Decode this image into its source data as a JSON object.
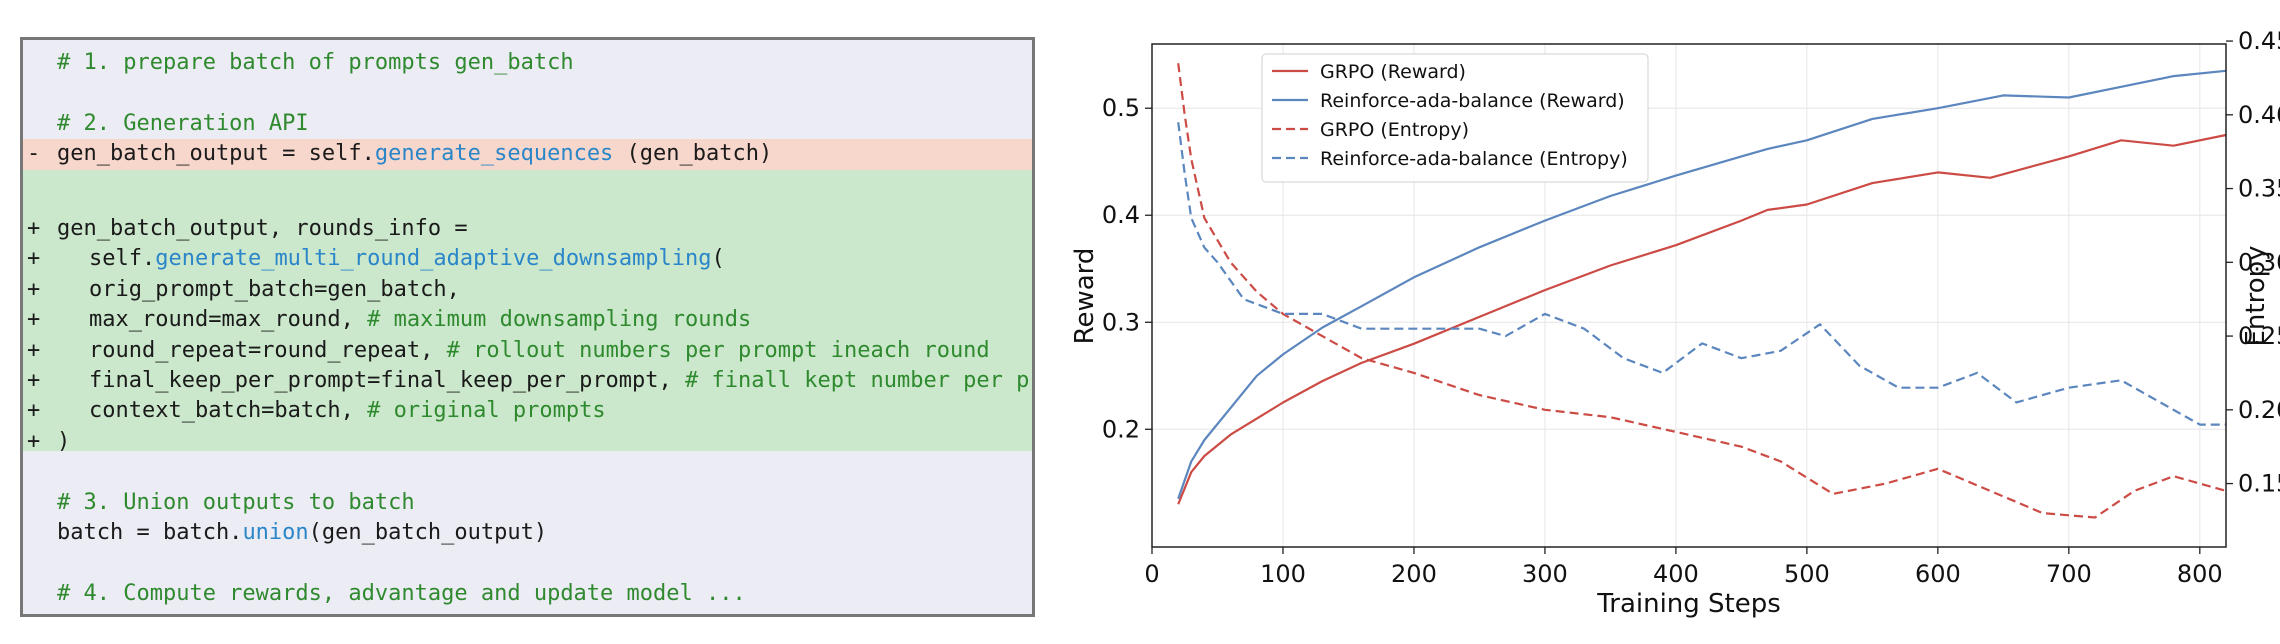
{
  "code": {
    "lines": [
      {
        "marker": "",
        "indent": 1,
        "hl": "",
        "segments": [
          {
            "t": "# 1. prepare batch of prompts gen_batch",
            "c": "comment"
          }
        ]
      },
      {
        "marker": "",
        "indent": 1,
        "hl": "",
        "segments": []
      },
      {
        "marker": "",
        "indent": 1,
        "hl": "",
        "segments": [
          {
            "t": "# 2. Generation API",
            "c": "comment"
          }
        ]
      },
      {
        "marker": "-",
        "indent": 1,
        "hl": "removed",
        "segments": [
          {
            "t": "gen_batch_output = self.",
            "c": ""
          },
          {
            "t": "generate_sequences",
            "c": "func"
          },
          {
            "t": " (gen_batch)",
            "c": ""
          }
        ]
      },
      {
        "marker": "",
        "indent": 1,
        "hl": "added",
        "segments": []
      },
      {
        "marker": "+",
        "indent": 1,
        "hl": "added",
        "segments": [
          {
            "t": "gen_batch_output, rounds_info =",
            "c": ""
          }
        ]
      },
      {
        "marker": "+",
        "indent": 2,
        "hl": "added",
        "segments": [
          {
            "t": "self.",
            "c": ""
          },
          {
            "t": "generate_multi_round_adaptive_downsampling",
            "c": "func"
          },
          {
            "t": "(",
            "c": ""
          }
        ]
      },
      {
        "marker": "+",
        "indent": 2,
        "hl": "added",
        "segments": [
          {
            "t": "orig_prompt_batch=gen_batch,",
            "c": ""
          }
        ]
      },
      {
        "marker": "+",
        "indent": 2,
        "hl": "added",
        "segments": [
          {
            "t": "max_round=max_round, ",
            "c": ""
          },
          {
            "t": "# maximum downsampling rounds",
            "c": "comment"
          }
        ]
      },
      {
        "marker": "+",
        "indent": 2,
        "hl": "added",
        "segments": [
          {
            "t": "round_repeat=round_repeat, ",
            "c": ""
          },
          {
            "t": "# rollout numbers per prompt ineach round",
            "c": "comment"
          }
        ]
      },
      {
        "marker": "+",
        "indent": 2,
        "hl": "added",
        "segments": [
          {
            "t": "final_keep_per_prompt=final_keep_per_prompt, ",
            "c": ""
          },
          {
            "t": "# finall kept number per prompt",
            "c": "comment"
          }
        ]
      },
      {
        "marker": "+",
        "indent": 2,
        "hl": "added",
        "segments": [
          {
            "t": "context_batch=batch, ",
            "c": ""
          },
          {
            "t": "# original prompts",
            "c": "comment"
          }
        ]
      },
      {
        "marker": "+",
        "indent": 1,
        "hl": "added",
        "segments": [
          {
            "t": ")",
            "c": ""
          }
        ]
      },
      {
        "marker": "",
        "indent": 1,
        "hl": "",
        "segments": []
      },
      {
        "marker": "",
        "indent": 1,
        "hl": "",
        "segments": [
          {
            "t": "# 3. Union outputs to batch",
            "c": "comment"
          }
        ]
      },
      {
        "marker": "",
        "indent": 1,
        "hl": "",
        "segments": [
          {
            "t": "batch = batch.",
            "c": ""
          },
          {
            "t": "union",
            "c": "func"
          },
          {
            "t": "(gen_batch_output)",
            "c": ""
          }
        ]
      },
      {
        "marker": "",
        "indent": 1,
        "hl": "",
        "segments": []
      },
      {
        "marker": "",
        "indent": 1,
        "hl": "",
        "segments": [
          {
            "t": "# 4. Compute rewards, advantage and update model ...",
            "c": "comment"
          }
        ]
      }
    ],
    "colors": {
      "comment": "#2f8a2f",
      "func": "#2a86c8",
      "removed_bg": "#f7d6cb",
      "added_bg": "#cce8cc"
    }
  },
  "chart_data": {
    "type": "line",
    "xlabel": "Training Steps",
    "ylabel_left": "Reward",
    "ylabel_right": "Entropy",
    "xlim": [
      0,
      820
    ],
    "ylim_left": [
      0.09,
      0.56
    ],
    "ylim_right": [
      0.107,
      0.448
    ],
    "xticks": [
      0,
      100,
      200,
      300,
      400,
      500,
      600,
      700,
      800
    ],
    "yticks_left": [
      0.2,
      0.3,
      0.4,
      0.5
    ],
    "yticks_right": [
      0.15,
      0.2,
      0.25,
      0.3,
      0.35,
      0.4,
      0.45
    ],
    "grid": true,
    "legend_position": "top-left",
    "series": [
      {
        "name": "GRPO (Reward)",
        "axis": "left",
        "style": "solid",
        "color": "#cc4b45",
        "x": [
          20,
          30,
          40,
          60,
          80,
          100,
          130,
          160,
          200,
          250,
          300,
          350,
          400,
          450,
          470,
          500,
          550,
          600,
          640,
          700,
          740,
          780,
          820
        ],
        "y": [
          0.13,
          0.16,
          0.175,
          0.195,
          0.21,
          0.225,
          0.245,
          0.262,
          0.28,
          0.305,
          0.33,
          0.353,
          0.372,
          0.395,
          0.405,
          0.41,
          0.43,
          0.44,
          0.435,
          0.455,
          0.47,
          0.465,
          0.475
        ]
      },
      {
        "name": "Reinforce-ada-balance (Reward)",
        "axis": "left",
        "style": "solid",
        "color": "#5b86be",
        "x": [
          20,
          30,
          40,
          60,
          80,
          100,
          130,
          160,
          200,
          250,
          300,
          350,
          400,
          450,
          470,
          500,
          550,
          600,
          650,
          700,
          740,
          780,
          820
        ],
        "y": [
          0.135,
          0.17,
          0.19,
          0.22,
          0.25,
          0.27,
          0.295,
          0.315,
          0.342,
          0.37,
          0.395,
          0.418,
          0.437,
          0.455,
          0.462,
          0.47,
          0.49,
          0.5,
          0.512,
          0.51,
          0.52,
          0.53,
          0.535
        ]
      },
      {
        "name": "GRPO (Entropy)",
        "axis": "right",
        "style": "dashed",
        "color": "#cc4b45",
        "x": [
          20,
          25,
          30,
          40,
          50,
          60,
          80,
          100,
          130,
          160,
          200,
          250,
          300,
          350,
          400,
          450,
          480,
          520,
          560,
          600,
          640,
          680,
          720,
          750,
          780,
          820
        ],
        "y": [
          0.435,
          0.4,
          0.37,
          0.33,
          0.315,
          0.3,
          0.28,
          0.265,
          0.25,
          0.235,
          0.225,
          0.21,
          0.2,
          0.195,
          0.185,
          0.175,
          0.165,
          0.143,
          0.15,
          0.16,
          0.145,
          0.13,
          0.127,
          0.145,
          0.155,
          0.145
        ]
      },
      {
        "name": "Reinforce-ada-balance (Entropy)",
        "axis": "right",
        "style": "dashed",
        "color": "#5b86be",
        "x": [
          20,
          25,
          30,
          40,
          50,
          70,
          100,
          130,
          160,
          200,
          250,
          270,
          300,
          330,
          360,
          390,
          420,
          450,
          480,
          510,
          540,
          570,
          600,
          630,
          660,
          700,
          740,
          760,
          800,
          820
        ],
        "y": [
          0.395,
          0.36,
          0.33,
          0.31,
          0.3,
          0.275,
          0.265,
          0.265,
          0.255,
          0.255,
          0.255,
          0.25,
          0.265,
          0.255,
          0.235,
          0.225,
          0.245,
          0.235,
          0.24,
          0.258,
          0.23,
          0.215,
          0.215,
          0.225,
          0.205,
          0.215,
          0.22,
          0.21,
          0.19,
          0.19
        ]
      }
    ]
  }
}
